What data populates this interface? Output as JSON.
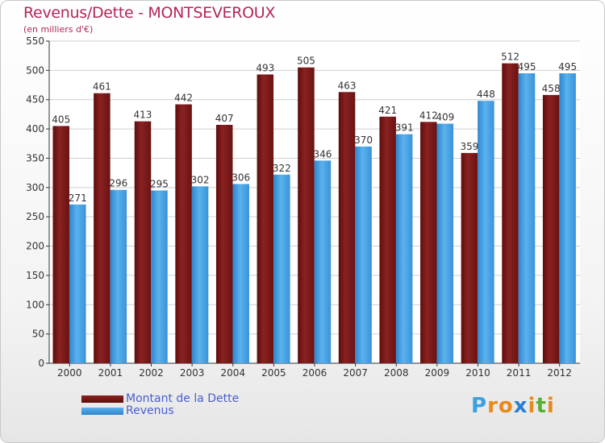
{
  "header": {
    "title": "Revenus/Dette - MONTSEVEROUX",
    "subtitle": "(en milliers d'€)"
  },
  "logo": {
    "text": "Proxiti"
  },
  "colors": {
    "dette": "#7a1616",
    "revenus": "#4aa3e6",
    "title": "#b3265a",
    "legend_text": "#4a5fd0"
  },
  "chart_data": {
    "type": "bar",
    "title": "Revenus/Dette - MONTSEVEROUX",
    "subtitle": "(en milliers d'€)",
    "xlabel": "",
    "ylabel": "",
    "categories": [
      "2000",
      "2001",
      "2002",
      "2003",
      "2004",
      "2005",
      "2006",
      "2007",
      "2008",
      "2009",
      "2010",
      "2011",
      "2012"
    ],
    "series": [
      {
        "name": "Montant de la Dette",
        "color": "#7a1616",
        "values": [
          405,
          461,
          413,
          442,
          407,
          493,
          505,
          463,
          421,
          412,
          359,
          512,
          458
        ]
      },
      {
        "name": "Revenus",
        "color": "#4aa3e6",
        "values": [
          271,
          296,
          295,
          302,
          306,
          322,
          346,
          370,
          391,
          409,
          448,
          495,
          495
        ]
      }
    ],
    "ylim": [
      0,
      550
    ],
    "yticks": [
      0,
      50,
      100,
      150,
      200,
      250,
      300,
      350,
      400,
      450,
      500,
      550
    ],
    "grid": true,
    "legend_position": "bottom-left"
  }
}
